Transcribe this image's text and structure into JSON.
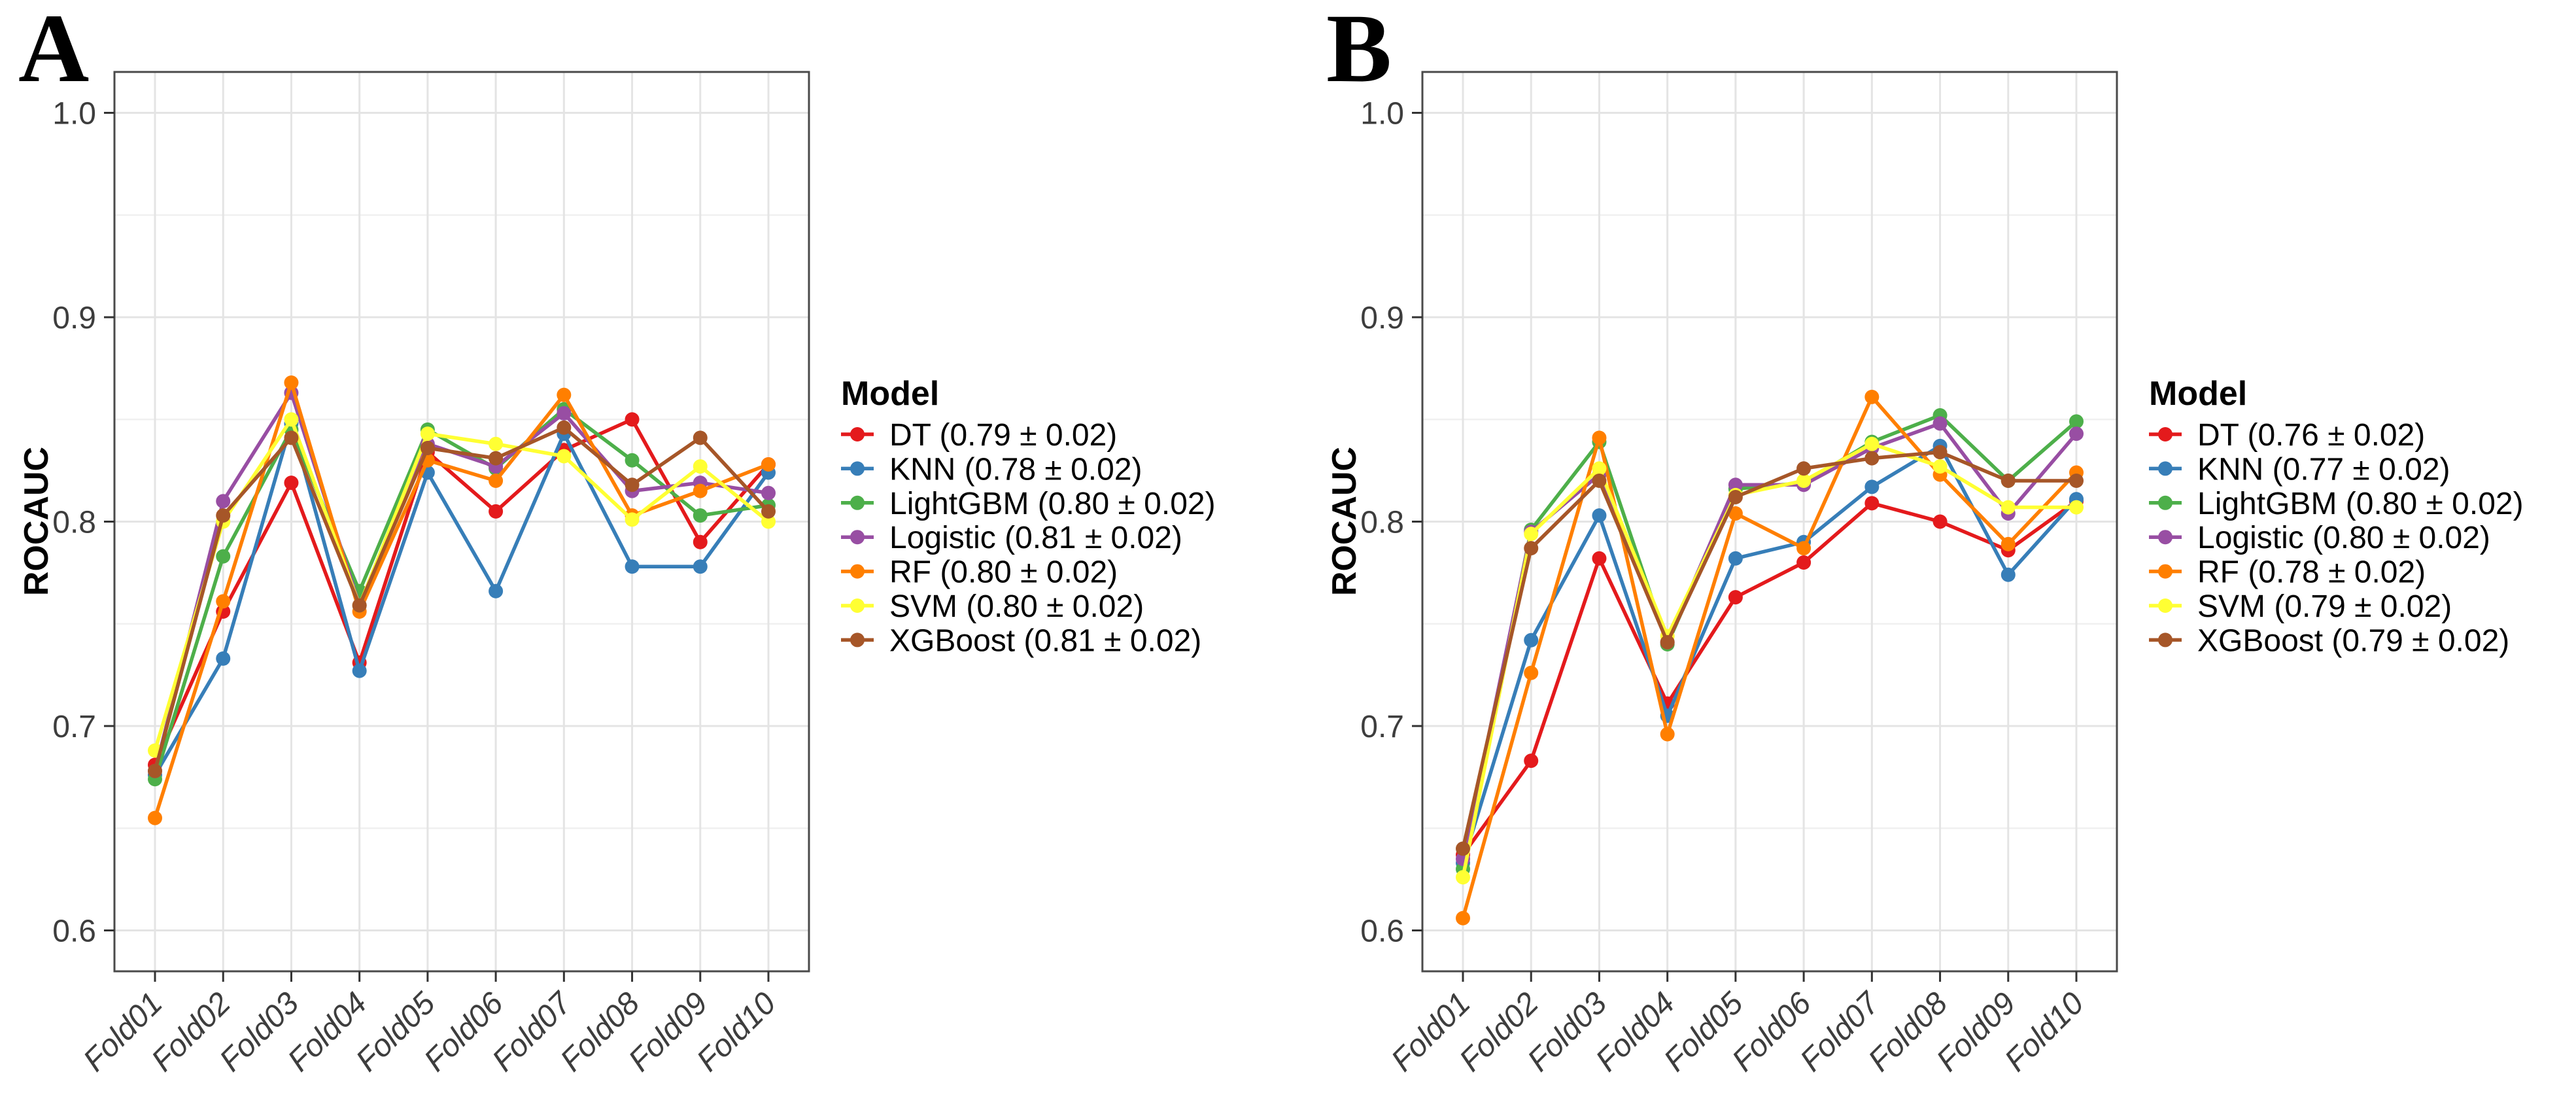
{
  "chart_data": [
    {
      "type": "line",
      "panel_label": "A",
      "title": "",
      "xlabel": "",
      "ylabel": "ROCAUC",
      "legend_title": "Model",
      "legend_position": "right",
      "grid": true,
      "ylim": [
        0.58,
        1.02
      ],
      "y_major_ticks": [
        0.6,
        0.7,
        0.8,
        0.9,
        1.0
      ],
      "y_minor_ticks": [
        0.65,
        0.75,
        0.85,
        0.95
      ],
      "y_tick_labels": [
        "0.6",
        "0.7",
        "0.8",
        "0.9",
        "1.0"
      ],
      "categories": [
        "Fold01",
        "Fold02",
        "Fold03",
        "Fold04",
        "Fold05",
        "Fold06",
        "Fold07",
        "Fold08",
        "Fold09",
        "Fold10"
      ],
      "series": [
        {
          "name": "DT",
          "label": "DT (0.79 ± 0.02)",
          "color": "#E41A1C",
          "values": [
            0.681,
            0.756,
            0.819,
            0.731,
            0.834,
            0.805,
            0.835,
            0.85,
            0.79,
            0.828
          ]
        },
        {
          "name": "KNN",
          "label": "KNN (0.78 ± 0.02)",
          "color": "#377EB8",
          "values": [
            0.676,
            0.733,
            0.848,
            0.727,
            0.824,
            0.766,
            0.843,
            0.778,
            0.778,
            0.824
          ]
        },
        {
          "name": "LightGBM",
          "label": "LightGBM (0.80 ± 0.02)",
          "color": "#4DAF4A",
          "values": [
            0.674,
            0.783,
            0.845,
            0.766,
            0.845,
            0.826,
            0.855,
            0.83,
            0.803,
            0.808
          ]
        },
        {
          "name": "Logistic",
          "label": "Logistic (0.81 ± 0.02)",
          "color": "#984EA3",
          "values": [
            0.678,
            0.81,
            0.863,
            0.759,
            0.838,
            0.827,
            0.853,
            0.815,
            0.819,
            0.814
          ]
        },
        {
          "name": "RF",
          "label": "RF (0.80 ± 0.02)",
          "color": "#FF7F00",
          "values": [
            0.655,
            0.761,
            0.868,
            0.756,
            0.83,
            0.82,
            0.862,
            0.803,
            0.815,
            0.828
          ]
        },
        {
          "name": "SVM",
          "label": "SVM (0.80 ± 0.02)",
          "color": "#FFFF33",
          "values": [
            0.688,
            0.8,
            0.85,
            0.759,
            0.843,
            0.838,
            0.832,
            0.801,
            0.827,
            0.8
          ]
        },
        {
          "name": "XGBoost",
          "label": "XGBoost (0.81 ± 0.02)",
          "color": "#A65628",
          "values": [
            0.678,
            0.803,
            0.841,
            0.759,
            0.836,
            0.831,
            0.846,
            0.818,
            0.841,
            0.805
          ]
        }
      ]
    },
    {
      "type": "line",
      "panel_label": "B",
      "title": "",
      "xlabel": "",
      "ylabel": "ROCAUC",
      "legend_title": "Model",
      "legend_position": "right",
      "grid": true,
      "ylim": [
        0.58,
        1.02
      ],
      "y_major_ticks": [
        0.6,
        0.7,
        0.8,
        0.9,
        1.0
      ],
      "y_minor_ticks": [
        0.65,
        0.75,
        0.85,
        0.95
      ],
      "y_tick_labels": [
        "0.6",
        "0.7",
        "0.8",
        "0.9",
        "1.0"
      ],
      "categories": [
        "Fold01",
        "Fold02",
        "Fold03",
        "Fold04",
        "Fold05",
        "Fold06",
        "Fold07",
        "Fold08",
        "Fold09",
        "Fold10"
      ],
      "series": [
        {
          "name": "DT",
          "label": "DT (0.76 ± 0.02)",
          "color": "#E41A1C",
          "values": [
            0.637,
            0.683,
            0.782,
            0.711,
            0.763,
            0.78,
            0.809,
            0.8,
            0.786,
            0.81
          ]
        },
        {
          "name": "KNN",
          "label": "KNN (0.77 ± 0.02)",
          "color": "#377EB8",
          "values": [
            0.633,
            0.742,
            0.803,
            0.705,
            0.782,
            0.79,
            0.817,
            0.837,
            0.774,
            0.811
          ]
        },
        {
          "name": "LightGBM",
          "label": "LightGBM (0.80 ± 0.02)",
          "color": "#4DAF4A",
          "values": [
            0.63,
            0.796,
            0.839,
            0.74,
            0.816,
            0.819,
            0.839,
            0.852,
            0.82,
            0.849
          ]
        },
        {
          "name": "Logistic",
          "label": "Logistic (0.80 ± 0.02)",
          "color": "#984EA3",
          "values": [
            0.635,
            0.795,
            0.823,
            0.741,
            0.818,
            0.818,
            0.836,
            0.848,
            0.804,
            0.843
          ]
        },
        {
          "name": "RF",
          "label": "RF (0.78 ± 0.02)",
          "color": "#FF7F00",
          "values": [
            0.606,
            0.726,
            0.841,
            0.696,
            0.804,
            0.787,
            0.861,
            0.823,
            0.789,
            0.824
          ]
        },
        {
          "name": "SVM",
          "label": "SVM (0.79 ± 0.02)",
          "color": "#FFFF33",
          "values": [
            0.626,
            0.794,
            0.826,
            0.744,
            0.813,
            0.82,
            0.838,
            0.827,
            0.807,
            0.807
          ]
        },
        {
          "name": "XGBoost",
          "label": "XGBoost (0.79 ± 0.02)",
          "color": "#A65628",
          "values": [
            0.64,
            0.787,
            0.82,
            0.741,
            0.812,
            0.826,
            0.831,
            0.834,
            0.82,
            0.82
          ]
        }
      ]
    }
  ],
  "style": {
    "major_grid_color": "#e4e4e4",
    "minor_grid_color": "#f0f0f0",
    "panel_border_color": "#4a4a4a",
    "tick_color": "#333333",
    "tick_label_color": "#3d3d3d",
    "background": "#ffffff"
  }
}
